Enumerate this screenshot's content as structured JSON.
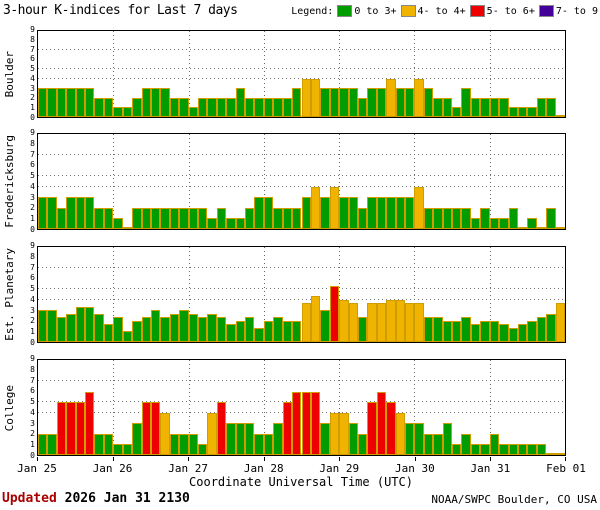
{
  "title": "3-hour K-indices for Last 7 days",
  "legend": {
    "label": "Legend:",
    "items": [
      {
        "label": "0 to 3+",
        "color": "#009C00"
      },
      {
        "label": "4- to 4+",
        "color": "#F0B400"
      },
      {
        "label": "5- to 6+",
        "color": "#EE0000"
      },
      {
        "label": "7- to 9",
        "color": "#430098"
      }
    ]
  },
  "footer": {
    "updated_label": "Updated",
    "updated_value": "2026 Jan 31 2130",
    "credit": "NOAA/SWPC Boulder, CO USA"
  },
  "chart_data": {
    "type": "bar",
    "title": "3-hour K-indices for Last 7 days",
    "xlabel": "Coordinate Universal Time (UTC)",
    "x_tick_labels": [
      "Jan 25",
      "Jan 26",
      "Jan 27",
      "Jan 28",
      "Jan 29",
      "Jan 30",
      "Jan 31",
      "Feb 01"
    ],
    "bars_per_day": 8,
    "ylim": [
      0,
      9
    ],
    "y_ticks": [
      0,
      1,
      2,
      3,
      4,
      5,
      6,
      7,
      8,
      9
    ],
    "hgrid_levels": [
      4,
      5,
      7
    ],
    "color_rule": "green < 3.6 <= yellow < 4.6 <= red < 6.6 <= purple",
    "series": [
      {
        "name": "Boulder",
        "values": [
          3,
          3,
          3,
          3,
          3,
          3,
          2,
          2,
          1,
          1,
          2,
          3,
          3,
          3,
          2,
          2,
          1,
          2,
          2,
          2,
          2,
          3,
          2,
          2,
          2,
          2,
          2,
          3,
          4,
          4,
          3,
          3,
          3,
          3,
          2,
          3,
          3,
          4,
          3,
          3,
          4,
          3,
          2,
          2,
          1,
          3,
          2,
          2,
          2,
          2,
          1,
          1,
          1,
          2,
          2,
          0
        ]
      },
      {
        "name": "Fredericksburg",
        "values": [
          3,
          3,
          2,
          3,
          3,
          3,
          2,
          2,
          1,
          0,
          2,
          2,
          2,
          2,
          2,
          2,
          2,
          2,
          1,
          2,
          1,
          1,
          2,
          3,
          3,
          2,
          2,
          2,
          3,
          4,
          3,
          4,
          3,
          3,
          2,
          3,
          3,
          3,
          3,
          3,
          4,
          2,
          2,
          2,
          2,
          2,
          1,
          2,
          1,
          1,
          2,
          0,
          1,
          0,
          2,
          0
        ]
      },
      {
        "name": "Est. Planetary",
        "values": [
          3,
          3,
          2.33,
          2.67,
          3.33,
          3.33,
          2.67,
          1.67,
          2.33,
          1,
          2,
          2.33,
          3,
          2.33,
          2.67,
          3,
          2.67,
          2.33,
          2.67,
          2.33,
          1.67,
          2,
          2.33,
          1.33,
          2,
          2.33,
          2,
          2,
          3.67,
          4.33,
          3,
          5.33,
          4,
          3.67,
          2.33,
          3.67,
          3.67,
          4,
          4,
          3.67,
          3.67,
          2.33,
          2.33,
          2,
          2,
          2.33,
          1.67,
          2,
          2,
          1.67,
          1.33,
          1.67,
          2,
          2.33,
          2.67,
          3.67
        ]
      },
      {
        "name": "College",
        "values": [
          2,
          2,
          5,
          5,
          5,
          6,
          2,
          2,
          1,
          1,
          3,
          5,
          5,
          4,
          2,
          2,
          2,
          1,
          4,
          5,
          3,
          3,
          3,
          2,
          2,
          3,
          5,
          6,
          6,
          6,
          3,
          4,
          4,
          3,
          2,
          5,
          6,
          5,
          4,
          3,
          3,
          2,
          2,
          3,
          1,
          2,
          1,
          1,
          2,
          1,
          1,
          1,
          1,
          1,
          0,
          0
        ]
      }
    ]
  }
}
